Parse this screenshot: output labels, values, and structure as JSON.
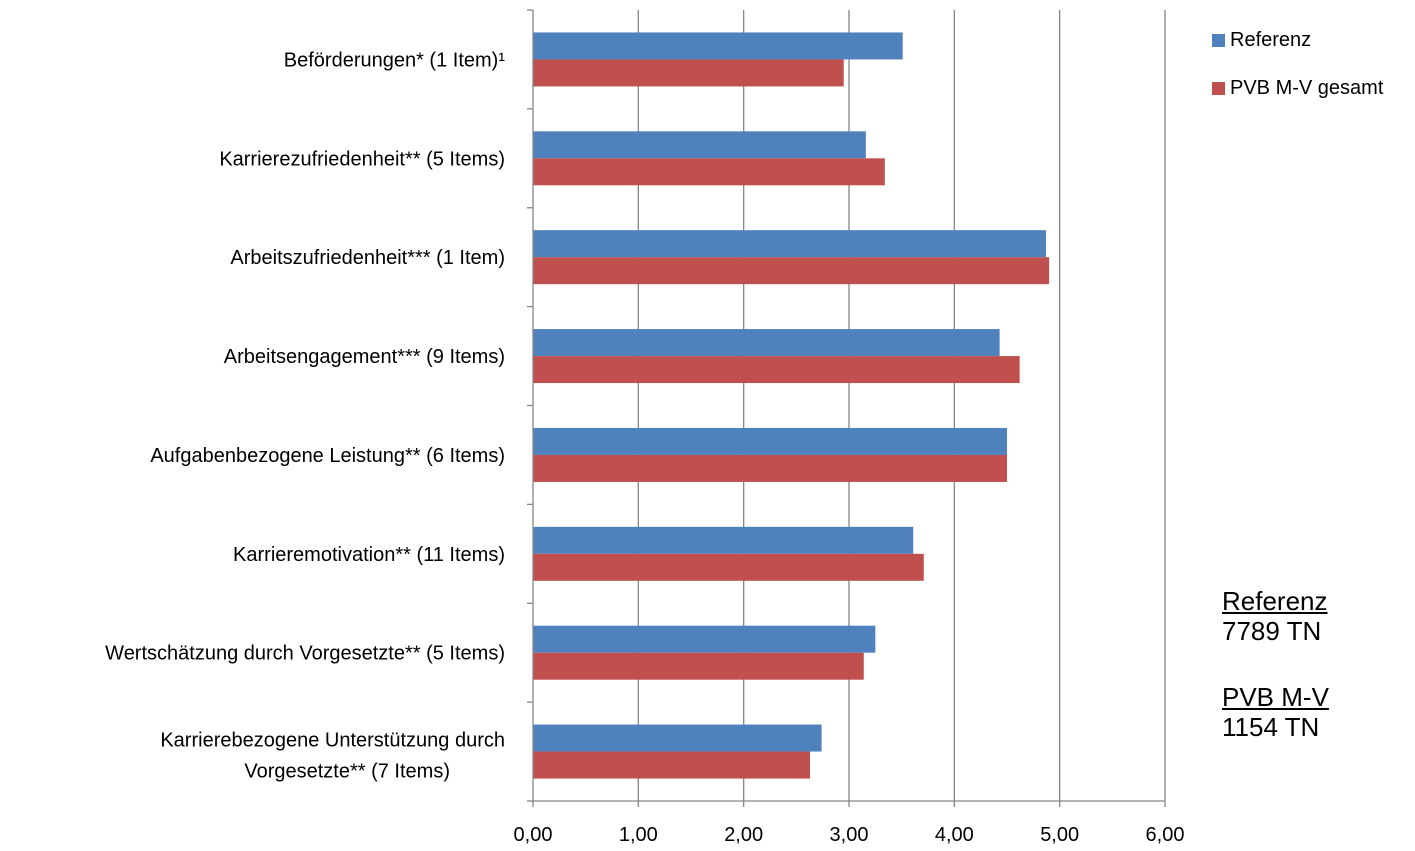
{
  "chart_data": {
    "type": "bar",
    "orientation": "horizontal",
    "categories": [
      "Beförderungen* (1 Item)¹",
      "Karrierezufriedenheit** (5 Items)",
      "Arbeitszufriedenheit*** (1 Item)",
      "Arbeitsengagement*** (9 Items)",
      "Aufgabenbezogene Leistung** (6 Items)",
      "Karrieremotivation** (11 Items)",
      "Wertschätzung durch Vorgesetzte** (5 Items)",
      "Karrierebezogene Unterstützung durch Vorgesetzte** (7 Items)"
    ],
    "series": [
      {
        "name": "Referenz",
        "color": "#4f81bd",
        "values": [
          3.51,
          3.16,
          4.87,
          4.43,
          4.5,
          3.61,
          3.25,
          2.74
        ]
      },
      {
        "name": "PVB M-V gesamt",
        "color": "#c0504d",
        "values": [
          2.95,
          3.34,
          4.9,
          4.62,
          4.5,
          3.71,
          3.14,
          2.63
        ]
      }
    ],
    "xlim": [
      0,
      6
    ],
    "xticks": [
      "0,00",
      "1,00",
      "2,00",
      "3,00",
      "4,00",
      "5,00",
      "6,00"
    ],
    "grid": "vertical",
    "legend_position": "top-right",
    "title": "",
    "xlabel": "",
    "ylabel": ""
  },
  "notes": [
    {
      "title": "Referenz",
      "value": "7789 TN"
    },
    {
      "title": "PVB M-V",
      "value": "1154 TN"
    }
  ]
}
